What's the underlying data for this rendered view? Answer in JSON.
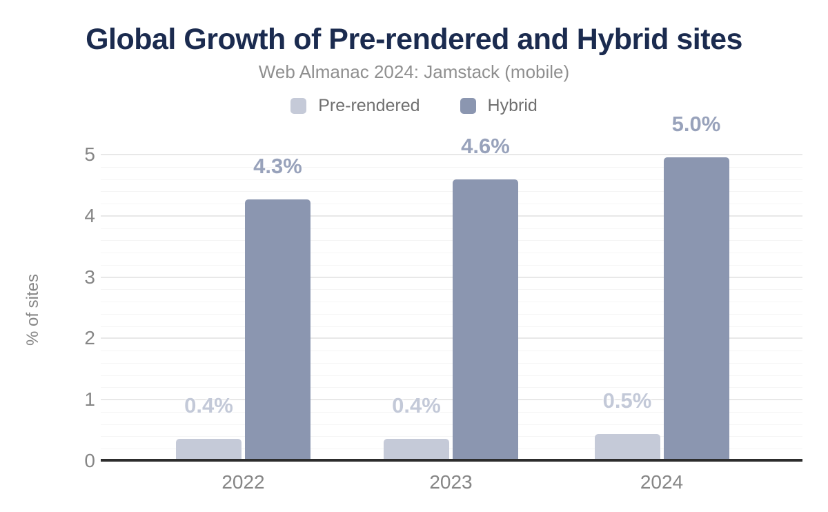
{
  "chart_data": {
    "type": "bar",
    "title": "Global Growth of Pre-rendered and Hybrid sites",
    "subtitle": "Web Almanac 2024: Jamstack (mobile)",
    "categories": [
      "2022",
      "2023",
      "2024"
    ],
    "series": [
      {
        "name": "Pre-rendered",
        "color": "#c5cad8",
        "label_color": "#c3c9d8",
        "values": [
          0.4,
          0.4,
          0.5
        ],
        "data_labels": [
          "0.4%",
          "0.4%",
          "0.5%"
        ],
        "drawn_values": [
          0.36,
          0.36,
          0.44
        ]
      },
      {
        "name": "Hybrid",
        "color": "#8b96b0",
        "label_color": "#98a2bb",
        "values": [
          4.3,
          4.6,
          5.0
        ],
        "data_labels": [
          "4.3%",
          "4.6%",
          "5.0%"
        ],
        "drawn_values": [
          4.27,
          4.59,
          4.95
        ]
      }
    ],
    "ylabel": "% of sites",
    "xlabel": "",
    "ylim": [
      0,
      5
    ],
    "yticks": [
      "0",
      "1",
      "2",
      "3",
      "4",
      "5"
    ],
    "minor_gridline_step": 0.2,
    "major_gridline_step": 1,
    "grid": true,
    "legend_position": "top-center",
    "colors": {
      "background": "#ffffff",
      "title": "#1b2b4f",
      "subtitle": "#8f8f8f",
      "legend_text": "#707070",
      "tick_text": "#868686",
      "axis_line": "#2d2d2d",
      "gridline_major": "#e8e8e8",
      "gridline_minor": "#f5f5f5"
    }
  }
}
